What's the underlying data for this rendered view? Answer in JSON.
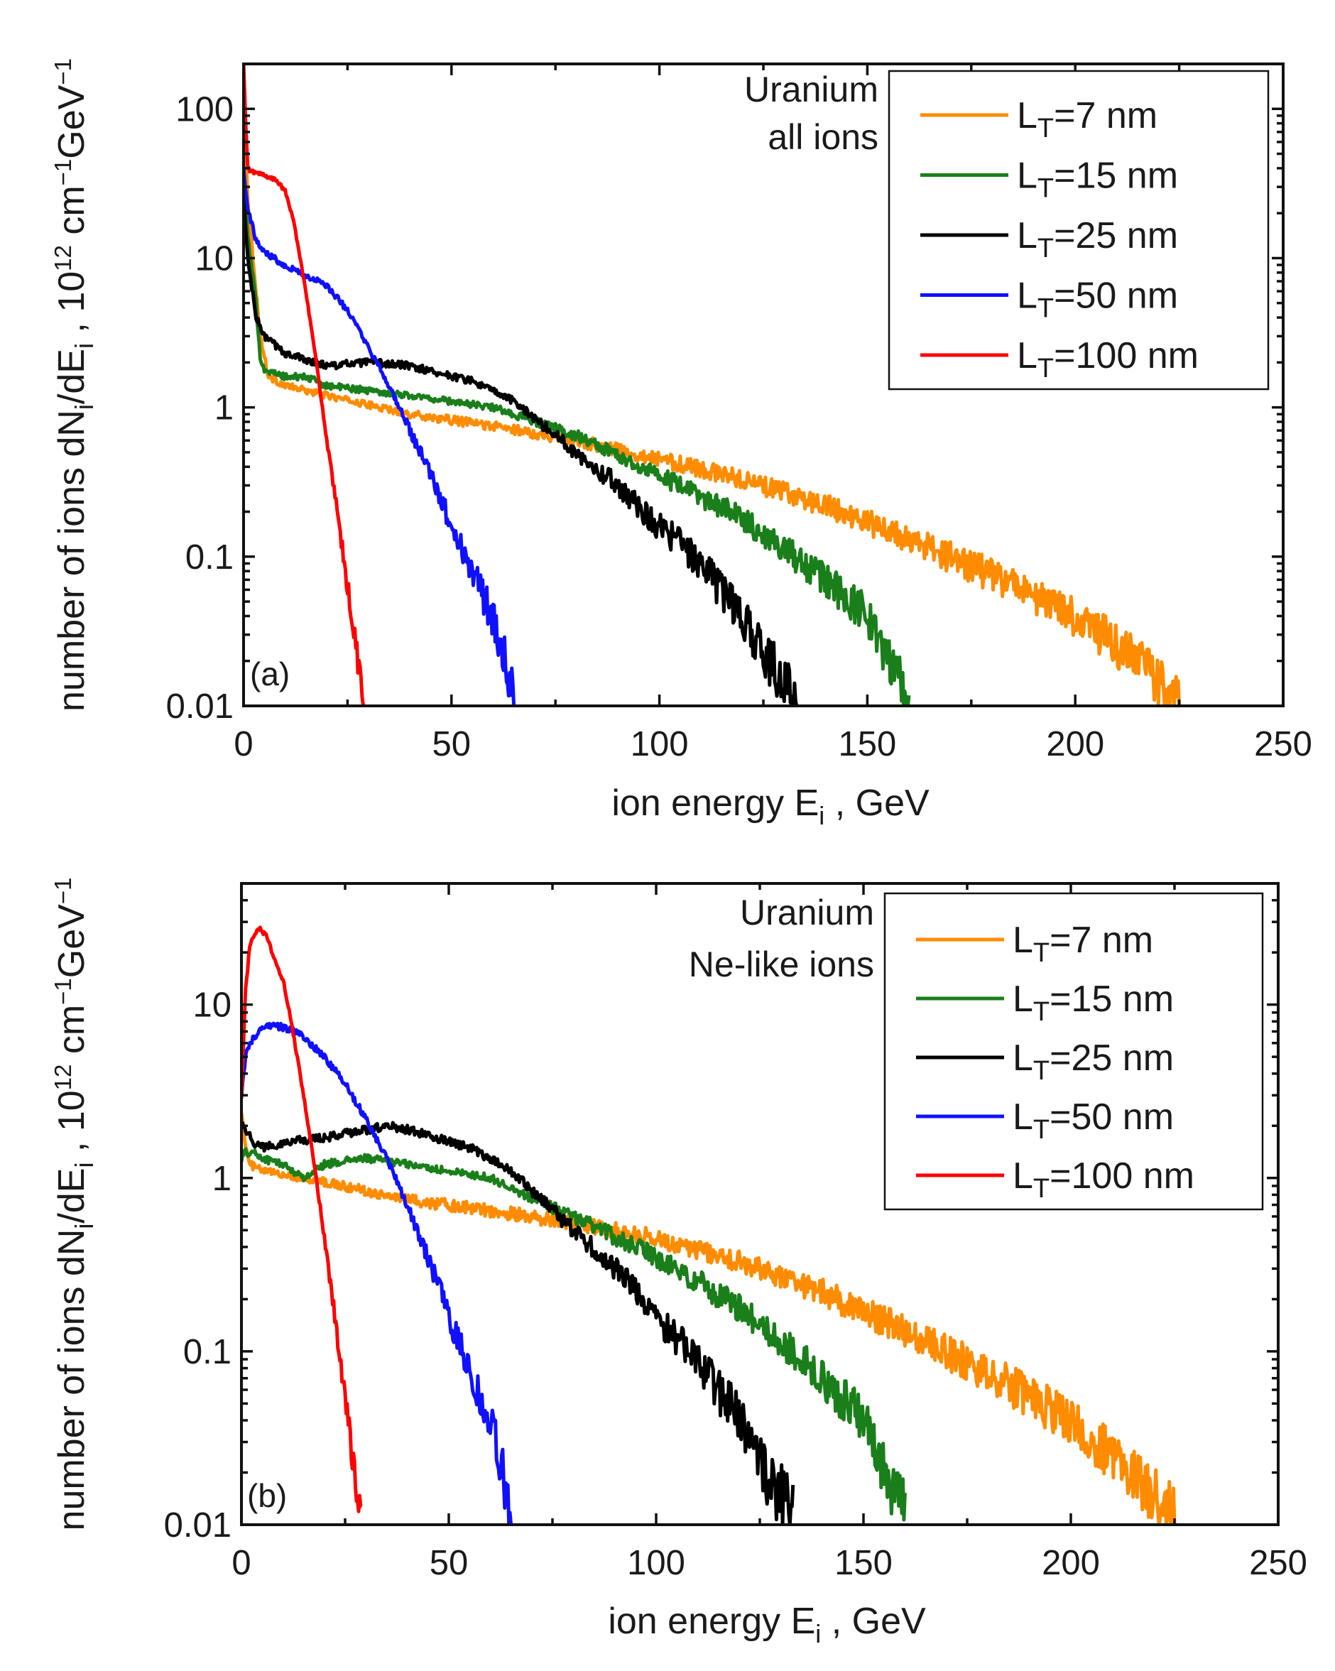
{
  "colors": {
    "L7": "#ff8c00",
    "L15": "#1a7f1a",
    "L25": "#000000",
    "L50": "#1010ff",
    "L100": "#ff0000"
  },
  "chart_data": [
    {
      "type": "line",
      "panel": "(a)",
      "annotation": [
        "Uranium",
        "all ions"
      ],
      "xlabel": {
        "main": "ion energy E",
        "sub": "i",
        "tail": " , GeV"
      },
      "ylabel": {
        "p1": "number of ions dN",
        "s1": "i",
        "p2": "/dE",
        "s2": "i",
        "p3": " , 10",
        "u1": "12",
        "p4": " cm",
        "u2": "−1",
        "p5": "GeV",
        "u3": "−1"
      },
      "xlim": [
        0,
        250
      ],
      "ylim": [
        0.01,
        200
      ],
      "yscale": "log",
      "xticks": [
        0,
        50,
        100,
        150,
        200,
        250
      ],
      "xtick_labels": [
        "0",
        "50",
        "100",
        "150",
        "200",
        "250"
      ],
      "yticks": [
        0.01,
        0.1,
        1,
        10,
        100
      ],
      "ytick_labels": [
        "0.01",
        "0.1",
        "1",
        "10",
        "100"
      ],
      "legend_position": "top-right",
      "series": [
        {
          "name": "L7",
          "label": "L",
          "label_sub": "T",
          "label_tail": "=7 nm",
          "noise": 0.09,
          "x": [
            0,
            1,
            2,
            3,
            4,
            6,
            10,
            20,
            40,
            60,
            80,
            100,
            120,
            140,
            160,
            180,
            200,
            215,
            225
          ],
          "y": [
            150,
            25,
            12,
            6,
            3,
            1.6,
            1.4,
            1.2,
            0.9,
            0.75,
            0.6,
            0.45,
            0.33,
            0.22,
            0.13,
            0.075,
            0.04,
            0.02,
            0.011
          ]
        },
        {
          "name": "L15",
          "label": "L",
          "label_sub": "T",
          "label_tail": "=15 nm",
          "noise": 0.09,
          "x": [
            0,
            1,
            3,
            4,
            5,
            7,
            10,
            15,
            20,
            30,
            40,
            60,
            80,
            100,
            120,
            140,
            150,
            155,
            160
          ],
          "y": [
            30,
            14,
            5,
            2.2,
            1.8,
            1.7,
            1.6,
            1.6,
            1.4,
            1.3,
            1.2,
            1.0,
            0.65,
            0.35,
            0.18,
            0.07,
            0.04,
            0.02,
            0.012
          ]
        },
        {
          "name": "L25",
          "label": "L",
          "label_sub": "T",
          "label_tail": "=25 nm",
          "noise": 0.1,
          "x": [
            0,
            1,
            3,
            5,
            10,
            20,
            30,
            40,
            55,
            65,
            80,
            90,
            100,
            110,
            120,
            125,
            130,
            133
          ],
          "y": [
            25,
            10,
            4,
            3,
            2.3,
            1.9,
            2.0,
            1.9,
            1.5,
            1.1,
            0.5,
            0.3,
            0.16,
            0.09,
            0.04,
            0.022,
            0.015,
            0.011
          ]
        },
        {
          "name": "L50",
          "label": "L",
          "label_sub": "T",
          "label_tail": "=50 nm",
          "noise": 0.09,
          "x": [
            0,
            1,
            3,
            5,
            10,
            20,
            25,
            30,
            35,
            40,
            45,
            50,
            55,
            60,
            63,
            65
          ],
          "y": [
            40,
            22,
            13,
            11,
            9,
            6.5,
            4.5,
            2.5,
            1.4,
            0.7,
            0.35,
            0.16,
            0.08,
            0.04,
            0.02,
            0.011
          ]
        },
        {
          "name": "L100",
          "label": "L",
          "label_sub": "T",
          "label_tail": "=100 nm",
          "noise": 0.05,
          "x": [
            0,
            0.5,
            1,
            2,
            5,
            8,
            10,
            12,
            15,
            18,
            20,
            22,
            24,
            26,
            28,
            29
          ],
          "y": [
            200,
            80,
            40,
            38,
            36,
            33,
            28,
            18,
            6,
            1.6,
            0.6,
            0.25,
            0.1,
            0.04,
            0.016,
            0.011
          ]
        }
      ]
    },
    {
      "type": "line",
      "panel": "(b)",
      "annotation": [
        "Uranium",
        "Ne-like ions"
      ],
      "xlabel": {
        "main": "ion energy E",
        "sub": "i",
        "tail": " , GeV"
      },
      "ylabel": {
        "p1": "number of ions dN",
        "s1": "i",
        "p2": "/dE",
        "s2": "i",
        "p3": " , 10",
        "u1": "12",
        "p4": " cm",
        "u2": "−1",
        "p5": "GeV",
        "u3": "−1"
      },
      "xlim": [
        0,
        250
      ],
      "ylim": [
        0.01,
        50
      ],
      "yscale": "log",
      "xticks": [
        0,
        50,
        100,
        150,
        200,
        250
      ],
      "xtick_labels": [
        "0",
        "50",
        "100",
        "150",
        "200",
        "250"
      ],
      "yticks": [
        0.01,
        0.1,
        1,
        10
      ],
      "ytick_labels": [
        "0.01",
        "0.1",
        "1",
        "10"
      ],
      "legend_position": "top-right",
      "series": [
        {
          "name": "L7",
          "label": "L",
          "label_sub": "T",
          "label_tail": "=7 nm",
          "noise": 0.09,
          "x": [
            0,
            1,
            2,
            5,
            10,
            20,
            40,
            60,
            80,
            100,
            120,
            140,
            160,
            180,
            200,
            215,
            225
          ],
          "y": [
            2.5,
            1.5,
            1.2,
            1.1,
            1.05,
            0.95,
            0.75,
            0.65,
            0.55,
            0.45,
            0.33,
            0.22,
            0.13,
            0.075,
            0.04,
            0.02,
            0.011
          ]
        },
        {
          "name": "L15",
          "label": "L",
          "label_sub": "T",
          "label_tail": "=15 nm",
          "noise": 0.09,
          "x": [
            0,
            1,
            3,
            5,
            10,
            15,
            20,
            30,
            40,
            60,
            80,
            100,
            120,
            140,
            150,
            155,
            160
          ],
          "y": [
            1.3,
            1.4,
            1.4,
            1.3,
            1.2,
            1.0,
            1.2,
            1.3,
            1.2,
            1.0,
            0.6,
            0.35,
            0.18,
            0.07,
            0.04,
            0.02,
            0.012
          ]
        },
        {
          "name": "L25",
          "label": "L",
          "label_sub": "T",
          "label_tail": "=25 nm",
          "noise": 0.1,
          "x": [
            0,
            1,
            3,
            5,
            10,
            20,
            30,
            35,
            40,
            55,
            65,
            80,
            90,
            100,
            110,
            120,
            125,
            130,
            133
          ],
          "y": [
            2.2,
            1.9,
            1.6,
            1.5,
            1.6,
            1.7,
            1.9,
            2.0,
            1.9,
            1.5,
            1.1,
            0.5,
            0.3,
            0.16,
            0.09,
            0.04,
            0.022,
            0.015,
            0.011
          ]
        },
        {
          "name": "L50",
          "label": "L",
          "label_sub": "T",
          "label_tail": "=50 nm",
          "noise": 0.08,
          "x": [
            0,
            1,
            2,
            5,
            8,
            12,
            15,
            20,
            25,
            30,
            35,
            40,
            45,
            50,
            55,
            60,
            63,
            65
          ],
          "y": [
            3,
            5,
            6,
            7.3,
            7.6,
            7.2,
            6.5,
            5,
            3.5,
            2.2,
            1.3,
            0.7,
            0.35,
            0.16,
            0.08,
            0.04,
            0.02,
            0.011
          ]
        },
        {
          "name": "L100",
          "label": "L",
          "label_sub": "T",
          "label_tail": "=100 nm",
          "noise": 0.05,
          "x": [
            0,
            1,
            2,
            4,
            6,
            8,
            10,
            12,
            15,
            18,
            20,
            22,
            24,
            26,
            28,
            29
          ],
          "y": [
            3,
            12,
            22,
            28,
            25,
            18,
            14,
            8,
            3,
            1,
            0.45,
            0.2,
            0.08,
            0.035,
            0.015,
            0.011
          ]
        }
      ]
    }
  ]
}
